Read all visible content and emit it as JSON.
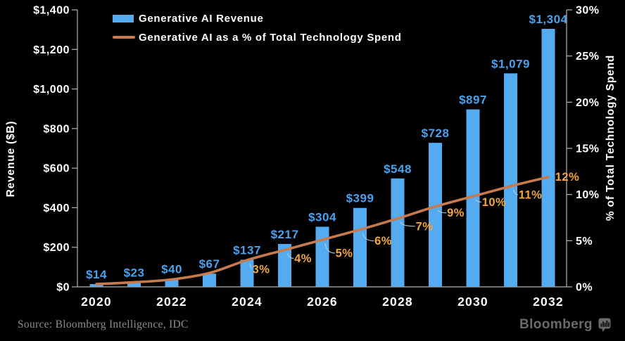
{
  "chart_data": {
    "type": "bar",
    "title": "",
    "categories": [
      2020,
      2021,
      2022,
      2023,
      2024,
      2025,
      2026,
      2027,
      2028,
      2029,
      2030,
      2031,
      2032
    ],
    "series": [
      {
        "name": "Generative AI Revenue",
        "type": "bar",
        "axis": "left",
        "values": [
          14,
          23,
          40,
          67,
          137,
          217,
          304,
          399,
          548,
          728,
          897,
          1079,
          1304
        ],
        "data_labels": [
          "$14",
          "$23",
          "$40",
          "$67",
          "$137",
          "$217",
          "$304",
          "$399",
          "$548",
          "$728",
          "$897",
          "$1,079",
          "$1,304"
        ]
      },
      {
        "name": "Generative AI as a % of Total Technology Spend",
        "type": "line",
        "axis": "right",
        "values": [
          0.3,
          0.5,
          0.8,
          1.5,
          2.9,
          4.0,
          5.1,
          6.2,
          7.4,
          8.7,
          9.8,
          10.9,
          11.9
        ],
        "data_labels": [
          null,
          null,
          null,
          null,
          "3%",
          "4%",
          "5%",
          "6%",
          "7%",
          "9%",
          "10%",
          "11%",
          "12%"
        ]
      }
    ],
    "x_axis": {
      "tick_labels": [
        "2020",
        "2022",
        "2024",
        "2026",
        "2028",
        "2030",
        "2032"
      ]
    },
    "left_axis": {
      "title": "Revenue ($B)",
      "range": [
        0,
        1400
      ],
      "tick_step": 200,
      "tick_labels": [
        "$0",
        "$200",
        "$400",
        "$600",
        "$800",
        "$1,000",
        "$1,200",
        "$1,400"
      ]
    },
    "right_axis": {
      "title": "% of Total Technology Spend",
      "range": [
        0,
        30
      ],
      "tick_step": 5,
      "tick_labels": [
        "0%",
        "5%",
        "10%",
        "15%",
        "20%",
        "25%",
        "30%"
      ]
    },
    "grid": false,
    "legend_position": "top-left-inside",
    "background": "#000000"
  },
  "legend": {
    "items": [
      {
        "label": "Generative AI Revenue",
        "swatch": "bar"
      },
      {
        "label": "Generative AI as a % of Total Technology Spend",
        "swatch": "line"
      }
    ]
  },
  "footer": {
    "source": "Source: Bloomberg Intelligence, IDC",
    "logo_text": "Bloomberg"
  },
  "colors": {
    "background": "#000000",
    "bar": "#55abf0",
    "bar_label": "#4aa2ee",
    "line": "#c67a4d",
    "pct_label": "#f2a63d",
    "leader": "#bccfda",
    "axis": "#b5b5b5",
    "tick_text": "#ffffff",
    "source_text": "#8d8d8d",
    "logo": "#6a6a6a"
  }
}
